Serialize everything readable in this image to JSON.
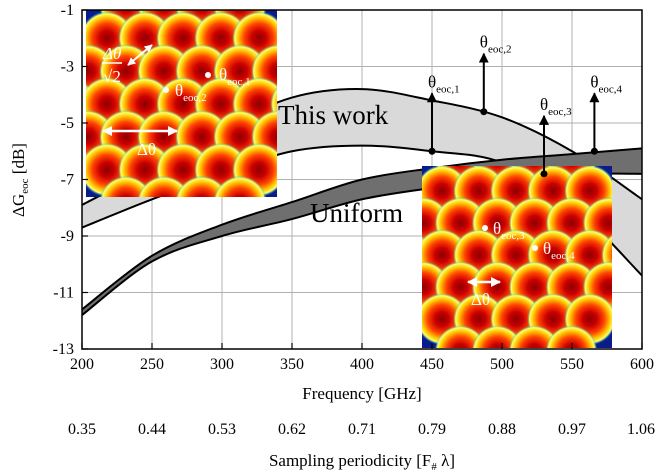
{
  "chart_data": {
    "type": "area",
    "xlabel": "Frequency  [GHz]",
    "ylabel_main": "ΔG",
    "ylabel_sub": "eoc",
    "ylabel_unit": "  [dB]",
    "xlim": [
      200,
      600
    ],
    "ylim": [
      -13,
      -1
    ],
    "x_ticks": [
      "200",
      "250",
      "300",
      "350",
      "400",
      "450",
      "500",
      "550",
      "600"
    ],
    "y_ticks": [
      "-1",
      "-3",
      "-5",
      "-7",
      "-9",
      "-11",
      "-13"
    ],
    "secondary_xlabel": "Sampling periodicity  [F# λ]",
    "secondary_xlabel_main": "Sampling periodicity  [F",
    "secondary_xlabel_sub": "#",
    "secondary_xlabel_end": " λ]",
    "secondary_ticks": [
      "0.35",
      "0.44",
      "0.53",
      "0.62",
      "0.71",
      "0.79",
      "0.88",
      "0.97",
      "1.06"
    ],
    "grid": true,
    "series": [
      {
        "name": "This work",
        "color": "#d9d9d9",
        "x": [
          200,
          250,
          300,
          350,
          400,
          450,
          500,
          550,
          600
        ],
        "upper": [
          -7.9,
          -6.6,
          -5.2,
          -4.1,
          -3.8,
          -4.2,
          -4.8,
          -6.0,
          -7.7
        ],
        "lower": [
          -8.7,
          -7.7,
          -6.8,
          -6.0,
          -5.8,
          -6.0,
          -6.4,
          -7.9,
          -10.4
        ]
      },
      {
        "name": "Uniform",
        "color": "#6f6f6f",
        "x": [
          200,
          250,
          300,
          350,
          400,
          450,
          500,
          550,
          600
        ],
        "upper": [
          -11.6,
          -9.7,
          -8.6,
          -7.8,
          -7.0,
          -6.6,
          -6.3,
          -6.1,
          -5.9
        ],
        "lower": [
          -11.8,
          -9.9,
          -9.0,
          -8.4,
          -7.7,
          -7.3,
          -7.0,
          -6.8,
          -6.8
        ]
      }
    ],
    "annotations": [
      {
        "label": "θ",
        "sub": "eoc,1",
        "x": 450,
        "y": -6.0
      },
      {
        "label": "θ",
        "sub": "eoc,2",
        "x": 487,
        "y": -4.6
      },
      {
        "label": "θ",
        "sub": "eoc,3",
        "x": 530,
        "y": -6.8
      },
      {
        "label": "θ",
        "sub": "eoc,4",
        "x": 566,
        "y": -6.0
      }
    ],
    "inset_left": {
      "title": "This work",
      "delta_label": "Δθ",
      "ratio_num": "Δθ",
      "ratio_den": "√2",
      "theta_label": "θ",
      "theta1_sub": "eoc,1",
      "theta2_sub": "eoc,2"
    },
    "inset_right": {
      "title": "Uniform",
      "delta_label": "Δθ",
      "theta_label": "θ",
      "theta3_sub": "eoc,3",
      "theta4_sub": "eoc,4"
    }
  }
}
